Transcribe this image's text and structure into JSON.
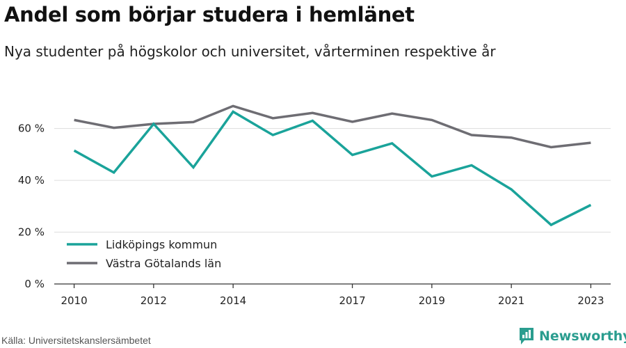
{
  "chart_data": {
    "type": "line",
    "title": "Andel som börjar studera i hemlänet",
    "subtitle": "Nya studenter på högskolor och universitet, vårterminen respektive år",
    "xlabel": "",
    "ylabel": "",
    "x": [
      2010,
      2011,
      2012,
      2013,
      2014,
      2015,
      2016,
      2017,
      2018,
      2019,
      2020,
      2021,
      2022,
      2023
    ],
    "x_ticks": [
      2010,
      2012,
      2014,
      2017,
      2019,
      2021,
      2023
    ],
    "x_range": [
      2009.5,
      2023.5
    ],
    "y_ticks": [
      0,
      20,
      40,
      60
    ],
    "y_tick_labels": [
      "0 %",
      "20 %",
      "40 %",
      "60 %"
    ],
    "ylim": [
      0,
      72
    ],
    "grid": "horizontal",
    "legend_position": "bottom-left",
    "series": [
      {
        "name": "Lidköpings kommun",
        "color": "#1aa39a",
        "values": [
          51.5,
          43,
          61.8,
          45,
          66.5,
          57.5,
          63,
          49.8,
          54.3,
          41.5,
          45.8,
          36.5,
          22.8,
          30.5
        ]
      },
      {
        "name": "Västra Götalands län",
        "color": "#6e6d73",
        "values": [
          63.3,
          60.3,
          61.8,
          62.5,
          68.7,
          64,
          66,
          62.6,
          65.8,
          63.3,
          57.5,
          56.5,
          52.8,
          54.5
        ]
      }
    ]
  },
  "footer": {
    "source": "Källa: Universitetskanslersämbetet",
    "brand": "Newsworthy"
  },
  "colors": {
    "grid": "#dddddd",
    "axis": "#333333",
    "brand": "#2a9d8f"
  }
}
